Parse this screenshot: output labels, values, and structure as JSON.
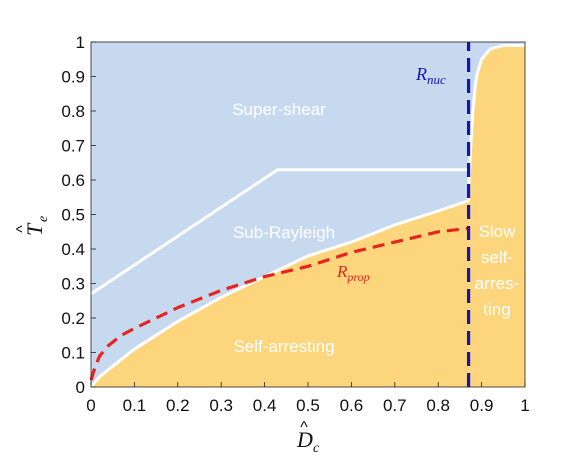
{
  "chart_data": {
    "type": "area",
    "xlabel": "D̂c",
    "ylabel": "T̂e",
    "xlim": [
      0,
      1
    ],
    "ylim": [
      0,
      1
    ],
    "xticks": [
      "0",
      "0.1",
      "0.2",
      "0.3",
      "0.4",
      "0.5",
      "0.6",
      "0.7",
      "0.8",
      "0.9",
      "1"
    ],
    "yticks": [
      "0",
      "0.1",
      "0.2",
      "0.3",
      "0.4",
      "0.5",
      "0.6",
      "0.7",
      "0.8",
      "0.9",
      "1"
    ],
    "colors": {
      "background": "#c6d9ee",
      "arresting": "#fcd57c",
      "boundary": "#ffffff",
      "nuc": "#1515b0",
      "prop": "#e8241e"
    },
    "regions": {
      "super_shear": "Super-shear",
      "sub_rayleigh": "Sub-Rayleigh",
      "self_arresting": "Self-arresting",
      "slow_line1": "Slow",
      "slow_line2": "self-",
      "slow_line3": "arres-",
      "slow_line4": "ting"
    },
    "labels": {
      "r_nuc": "Rnuc",
      "r_prop": "Rprop"
    },
    "series": [
      {
        "name": "arrest_boundary",
        "x": [
          0,
          0.02,
          0.05,
          0.1,
          0.15,
          0.2,
          0.3,
          0.4,
          0.5,
          0.6,
          0.7,
          0.8,
          0.87
        ],
        "y": [
          0,
          0.03,
          0.06,
          0.11,
          0.15,
          0.19,
          0.26,
          0.32,
          0.38,
          0.42,
          0.47,
          0.51,
          0.54
        ]
      },
      {
        "name": "rayleigh_boundary",
        "x": [
          0,
          0.43,
          0.87
        ],
        "y": [
          0.27,
          0.63,
          0.63
        ]
      },
      {
        "name": "slow_boundary",
        "x": [
          0.87,
          0.871,
          0.875,
          0.88,
          0.885,
          0.89,
          0.9,
          0.92,
          0.95,
          1.0
        ],
        "y": [
          0.54,
          0.6,
          0.7,
          0.8,
          0.87,
          0.91,
          0.95,
          0.98,
          0.99,
          0.99
        ]
      },
      {
        "name": "Rprop",
        "x": [
          0,
          0.01,
          0.02,
          0.04,
          0.07,
          0.1,
          0.15,
          0.2,
          0.3,
          0.4,
          0.5,
          0.6,
          0.7,
          0.8,
          0.87
        ],
        "y": [
          0.02,
          0.06,
          0.09,
          0.12,
          0.15,
          0.17,
          0.2,
          0.23,
          0.28,
          0.32,
          0.35,
          0.39,
          0.42,
          0.45,
          0.46
        ]
      },
      {
        "name": "Rnuc",
        "x": [
          0.87,
          0.87
        ],
        "y": [
          0,
          1
        ]
      }
    ]
  }
}
